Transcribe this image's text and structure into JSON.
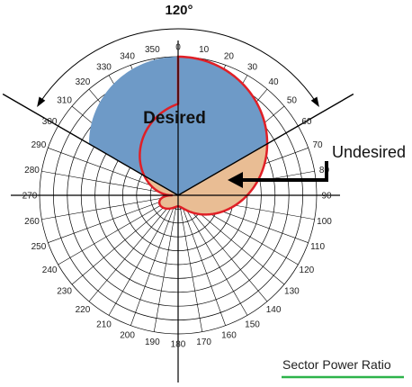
{
  "angle_span_label": "120°",
  "desired_label": "Desired",
  "undesired_label": "Undesired",
  "caption": "Sector Power Ratio",
  "angle_labels": [
    "0",
    "10",
    "20",
    "30",
    "40",
    "50",
    "60",
    "70",
    "80",
    "90",
    "100",
    "110",
    "120",
    "130",
    "140",
    "150",
    "160",
    "170",
    "180",
    "190",
    "200",
    "210",
    "220",
    "230",
    "240",
    "250",
    "260",
    "270",
    "280",
    "290",
    "300",
    "310",
    "320",
    "330",
    "340",
    "350"
  ],
  "colors": {
    "desired_fill": "#6e9ac7",
    "undesired_fill": "#e9bd94",
    "pattern_outline": "#e01f26",
    "arrow": "#000000",
    "caption_underline": "#2db34a",
    "grid": "#000000"
  }
}
